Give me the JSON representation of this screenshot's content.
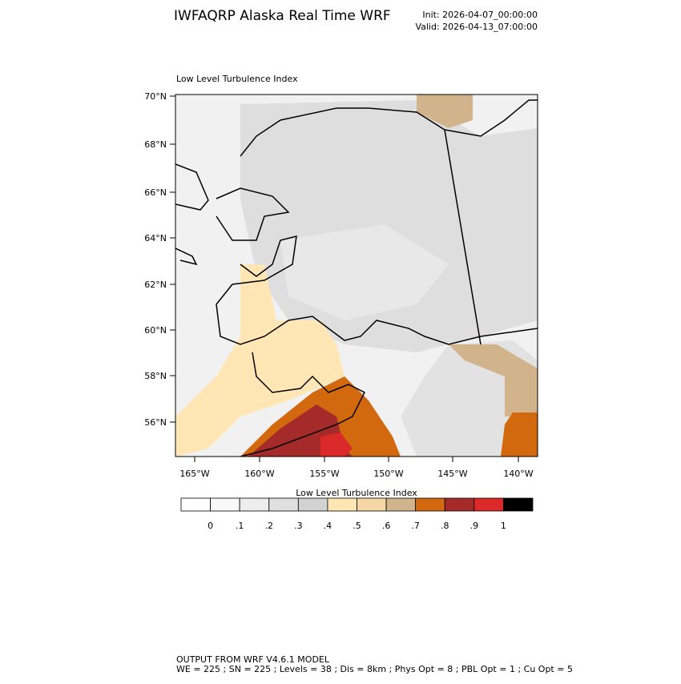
{
  "header": {
    "title": "IWFAQRP Alaska Real Time WRF",
    "init": "Init: 2026-04-07_00:00:00",
    "valid": "Valid: 2026-04-13_07:00:00"
  },
  "map": {
    "title": "Low Level Turbulence Index",
    "lat_labels": [
      "70°N",
      "68°N",
      "66°N",
      "64°N",
      "62°N",
      "60°N",
      "58°N",
      "56°N"
    ],
    "lon_labels": [
      "165°W",
      "160°W",
      "155°W",
      "150°W",
      "145°W",
      "140°W"
    ]
  },
  "colorbar": {
    "title": "Low Level Turbulence Index",
    "colors": [
      "#ffffff",
      "#f8f8f8",
      "#eeeeee",
      "#e0e0e0",
      "#d2d2d2",
      "#ffe6b4",
      "#f5d6a6",
      "#d2b48c",
      "#d2690e",
      "#a52a2a",
      "#dc2a2a",
      "#000000"
    ],
    "labels": [
      "0",
      ".1",
      ".2",
      ".3",
      ".4",
      ".5",
      ".6",
      ".7",
      ".8",
      ".9",
      "1"
    ]
  },
  "footer": {
    "line1": "OUTPUT FROM WRF V4.6.1 MODEL",
    "line2": "WE = 225 ; SN = 225 ; Levels = 38 ; Dis = 8km ; Phys Opt = 8 ; PBL Opt = 1 ; Cu Opt = 5"
  }
}
